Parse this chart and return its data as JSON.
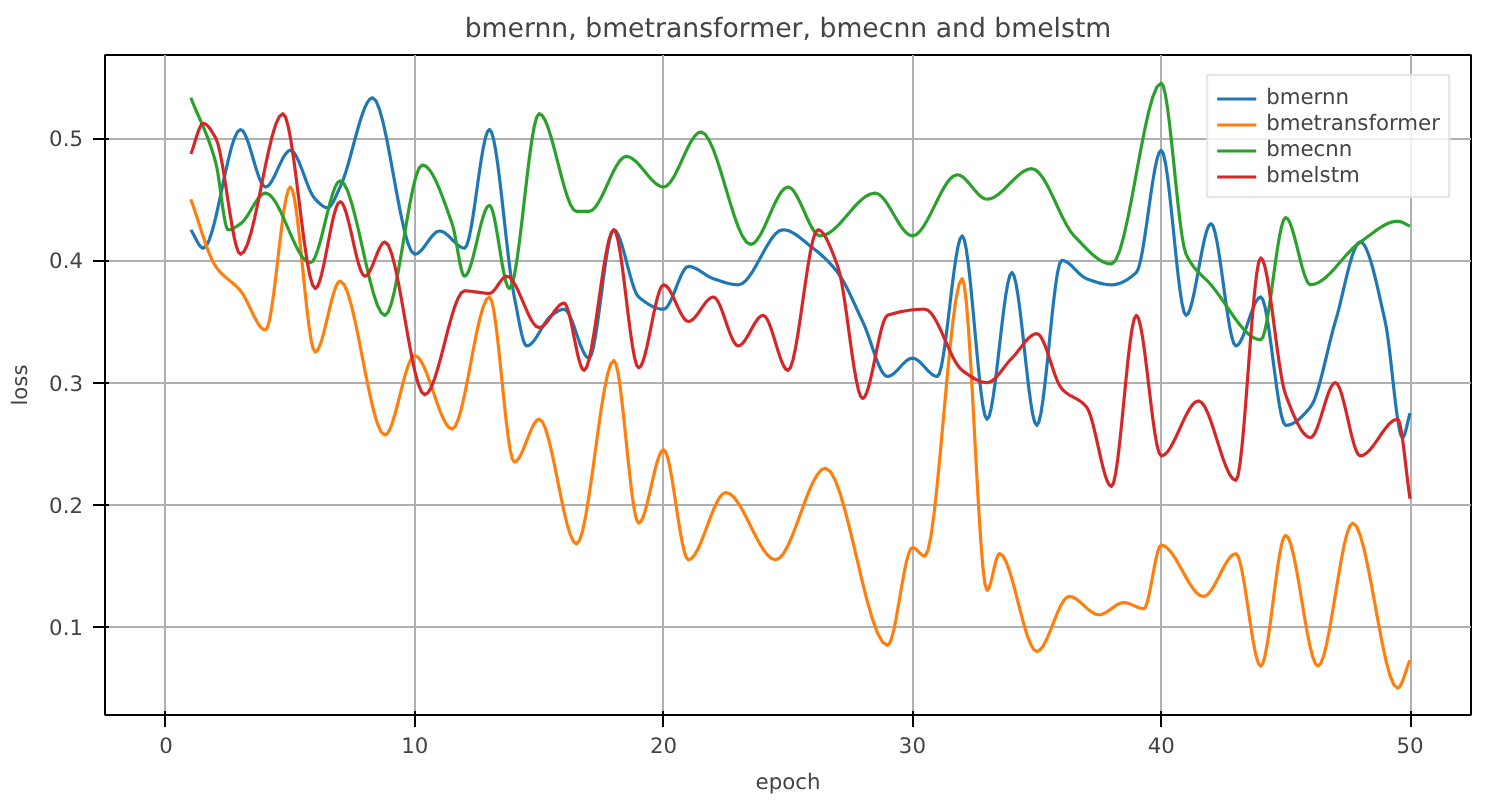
{
  "chart_data": {
    "type": "line",
    "title": "bmernn, bmetransformer, bmecnn and bmelstm",
    "xlabel": "epoch",
    "ylabel": "loss",
    "xlim": [
      -2.45,
      52.45
    ],
    "xticks": [
      0,
      10,
      20,
      30,
      40,
      50
    ],
    "ylim": [
      0.028,
      0.568
    ],
    "yticks": [
      0.1,
      0.2,
      0.3,
      0.4,
      0.5
    ],
    "grid": true,
    "legend": "top right",
    "marker": "none",
    "line_style": "solid",
    "series": [
      {
        "name": "bmernn",
        "color": "#1f77b4",
        "x": [
          1,
          1.5,
          3,
          4,
          5,
          6,
          6.5,
          7,
          8.3,
          10,
          11,
          12,
          13,
          14,
          14.5,
          15.5,
          16,
          17,
          18,
          19,
          20,
          21,
          22,
          23,
          24.8,
          26,
          27,
          28,
          29,
          30,
          31,
          32,
          33,
          34,
          35,
          36,
          37,
          38,
          39,
          40,
          41,
          42,
          43,
          44,
          45,
          46,
          47,
          48,
          49,
          49.7,
          50
        ],
        "values": [
          0.425,
          0.41,
          0.507,
          0.46,
          0.49,
          0.45,
          0.443,
          0.46,
          0.533,
          0.405,
          0.424,
          0.41,
          0.507,
          0.37,
          0.33,
          0.355,
          0.36,
          0.32,
          0.425,
          0.37,
          0.36,
          0.395,
          0.385,
          0.38,
          0.425,
          0.41,
          0.39,
          0.35,
          0.305,
          0.32,
          0.305,
          0.42,
          0.27,
          0.39,
          0.265,
          0.4,
          0.385,
          0.38,
          0.39,
          0.49,
          0.355,
          0.43,
          0.33,
          0.37,
          0.265,
          0.28,
          0.35,
          0.415,
          0.35,
          0.255,
          0.275
        ]
      },
      {
        "name": "bmetransformer",
        "color": "#ff7f0e",
        "x": [
          1,
          2,
          3,
          4,
          5,
          6,
          7,
          8.8,
          10,
          11.5,
          13,
          14,
          15,
          16.5,
          18,
          19,
          20,
          21,
          22.5,
          24.5,
          26.5,
          29,
          30,
          30.5,
          32,
          33,
          33.5,
          35,
          36.3,
          37.5,
          38.5,
          39.3,
          40,
          41.7,
          43,
          44,
          45,
          46.3,
          47.7,
          49.5,
          50
        ],
        "values": [
          0.45,
          0.395,
          0.375,
          0.343,
          0.46,
          0.325,
          0.383,
          0.257,
          0.322,
          0.262,
          0.37,
          0.235,
          0.27,
          0.168,
          0.318,
          0.185,
          0.245,
          0.155,
          0.21,
          0.155,
          0.23,
          0.085,
          0.165,
          0.158,
          0.385,
          0.13,
          0.16,
          0.08,
          0.125,
          0.11,
          0.12,
          0.115,
          0.167,
          0.125,
          0.16,
          0.068,
          0.175,
          0.068,
          0.185,
          0.05,
          0.073
        ]
      },
      {
        "name": "bmecnn",
        "color": "#2ca02c",
        "x": [
          1,
          2,
          2.5,
          3,
          4,
          5.8,
          7,
          8.8,
          10.3,
          11.5,
          12,
          13,
          13.8,
          15,
          16.5,
          17,
          18.5,
          20,
          21.5,
          23.5,
          25,
          26.3,
          28.5,
          30,
          31.8,
          33,
          34.8,
          36.5,
          38,
          40,
          41,
          42,
          44,
          45,
          46,
          48,
          49.5,
          50
        ],
        "values": [
          0.533,
          0.48,
          0.425,
          0.43,
          0.455,
          0.398,
          0.465,
          0.355,
          0.478,
          0.43,
          0.387,
          0.445,
          0.377,
          0.52,
          0.44,
          0.44,
          0.485,
          0.46,
          0.505,
          0.413,
          0.46,
          0.42,
          0.455,
          0.42,
          0.47,
          0.45,
          0.475,
          0.42,
          0.397,
          0.545,
          0.405,
          0.38,
          0.335,
          0.435,
          0.38,
          0.415,
          0.432,
          0.428
        ]
      },
      {
        "name": "bmelstm",
        "color": "#d62728",
        "x": [
          1,
          1.5,
          2,
          3,
          4.7,
          6,
          7,
          8,
          8.8,
          10.4,
          12,
          13,
          13.7,
          15,
          16,
          16.8,
          18,
          19,
          20,
          21,
          22,
          23,
          24,
          25,
          26.2,
          27,
          28,
          29,
          30.5,
          32,
          33,
          34,
          35,
          36,
          37,
          38,
          39,
          40,
          41.5,
          43,
          44,
          45,
          46,
          47,
          48,
          49.5,
          50
        ],
        "values": [
          0.487,
          0.512,
          0.5,
          0.405,
          0.52,
          0.377,
          0.448,
          0.387,
          0.415,
          0.29,
          0.375,
          0.373,
          0.387,
          0.345,
          0.365,
          0.31,
          0.425,
          0.312,
          0.38,
          0.35,
          0.37,
          0.33,
          0.355,
          0.31,
          0.425,
          0.395,
          0.287,
          0.355,
          0.36,
          0.31,
          0.3,
          0.32,
          0.34,
          0.295,
          0.28,
          0.215,
          0.355,
          0.24,
          0.285,
          0.22,
          0.402,
          0.29,
          0.255,
          0.3,
          0.24,
          0.27,
          0.205
        ]
      }
    ]
  }
}
